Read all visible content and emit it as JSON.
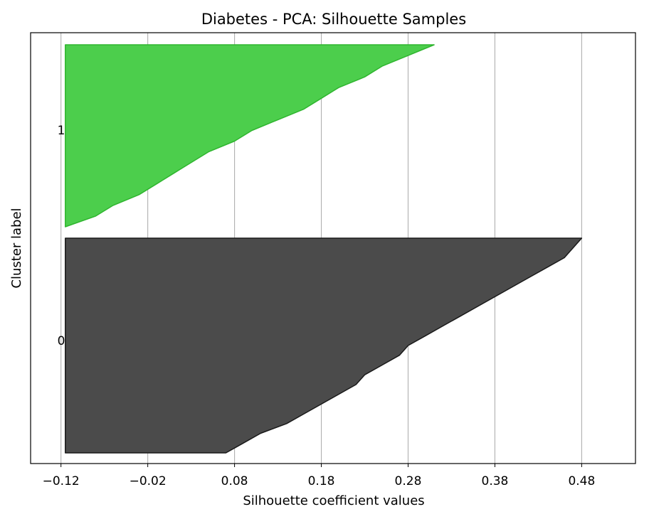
{
  "chart_data": {
    "type": "area",
    "title": "Diabetes - PCA: Silhouette Samples",
    "xlabel": "Silhouette coefficient values",
    "ylabel": "Cluster label",
    "xlim": [
      -0.155,
      0.542
    ],
    "x_ticks": [
      -0.12,
      -0.02,
      0.08,
      0.18,
      0.28,
      0.38,
      0.48
    ],
    "x_tick_labels": [
      "−0.12",
      "−0.02",
      "0.08",
      "0.18",
      "0.28",
      "0.38",
      "0.48"
    ],
    "grid": {
      "x": true,
      "y": false
    },
    "fill_base": -0.115,
    "clusters": [
      {
        "label": "0",
        "color": "#4b4b4b",
        "edge_color": "#1a1a1a",
        "profile": [
          0.48,
          0.47,
          0.46,
          0.44,
          0.42,
          0.4,
          0.38,
          0.36,
          0.34,
          0.32,
          0.3,
          0.28,
          0.27,
          0.25,
          0.23,
          0.22,
          0.2,
          0.18,
          0.16,
          0.14,
          0.11,
          0.09,
          0.07
        ]
      },
      {
        "label": "1",
        "color": "#4cce4c",
        "edge_color": "#2fb52f",
        "profile": [
          0.31,
          0.28,
          0.25,
          0.23,
          0.2,
          0.18,
          0.16,
          0.13,
          0.1,
          0.08,
          0.05,
          0.03,
          0.01,
          -0.01,
          -0.03,
          -0.06,
          -0.08,
          -0.115
        ]
      }
    ]
  }
}
